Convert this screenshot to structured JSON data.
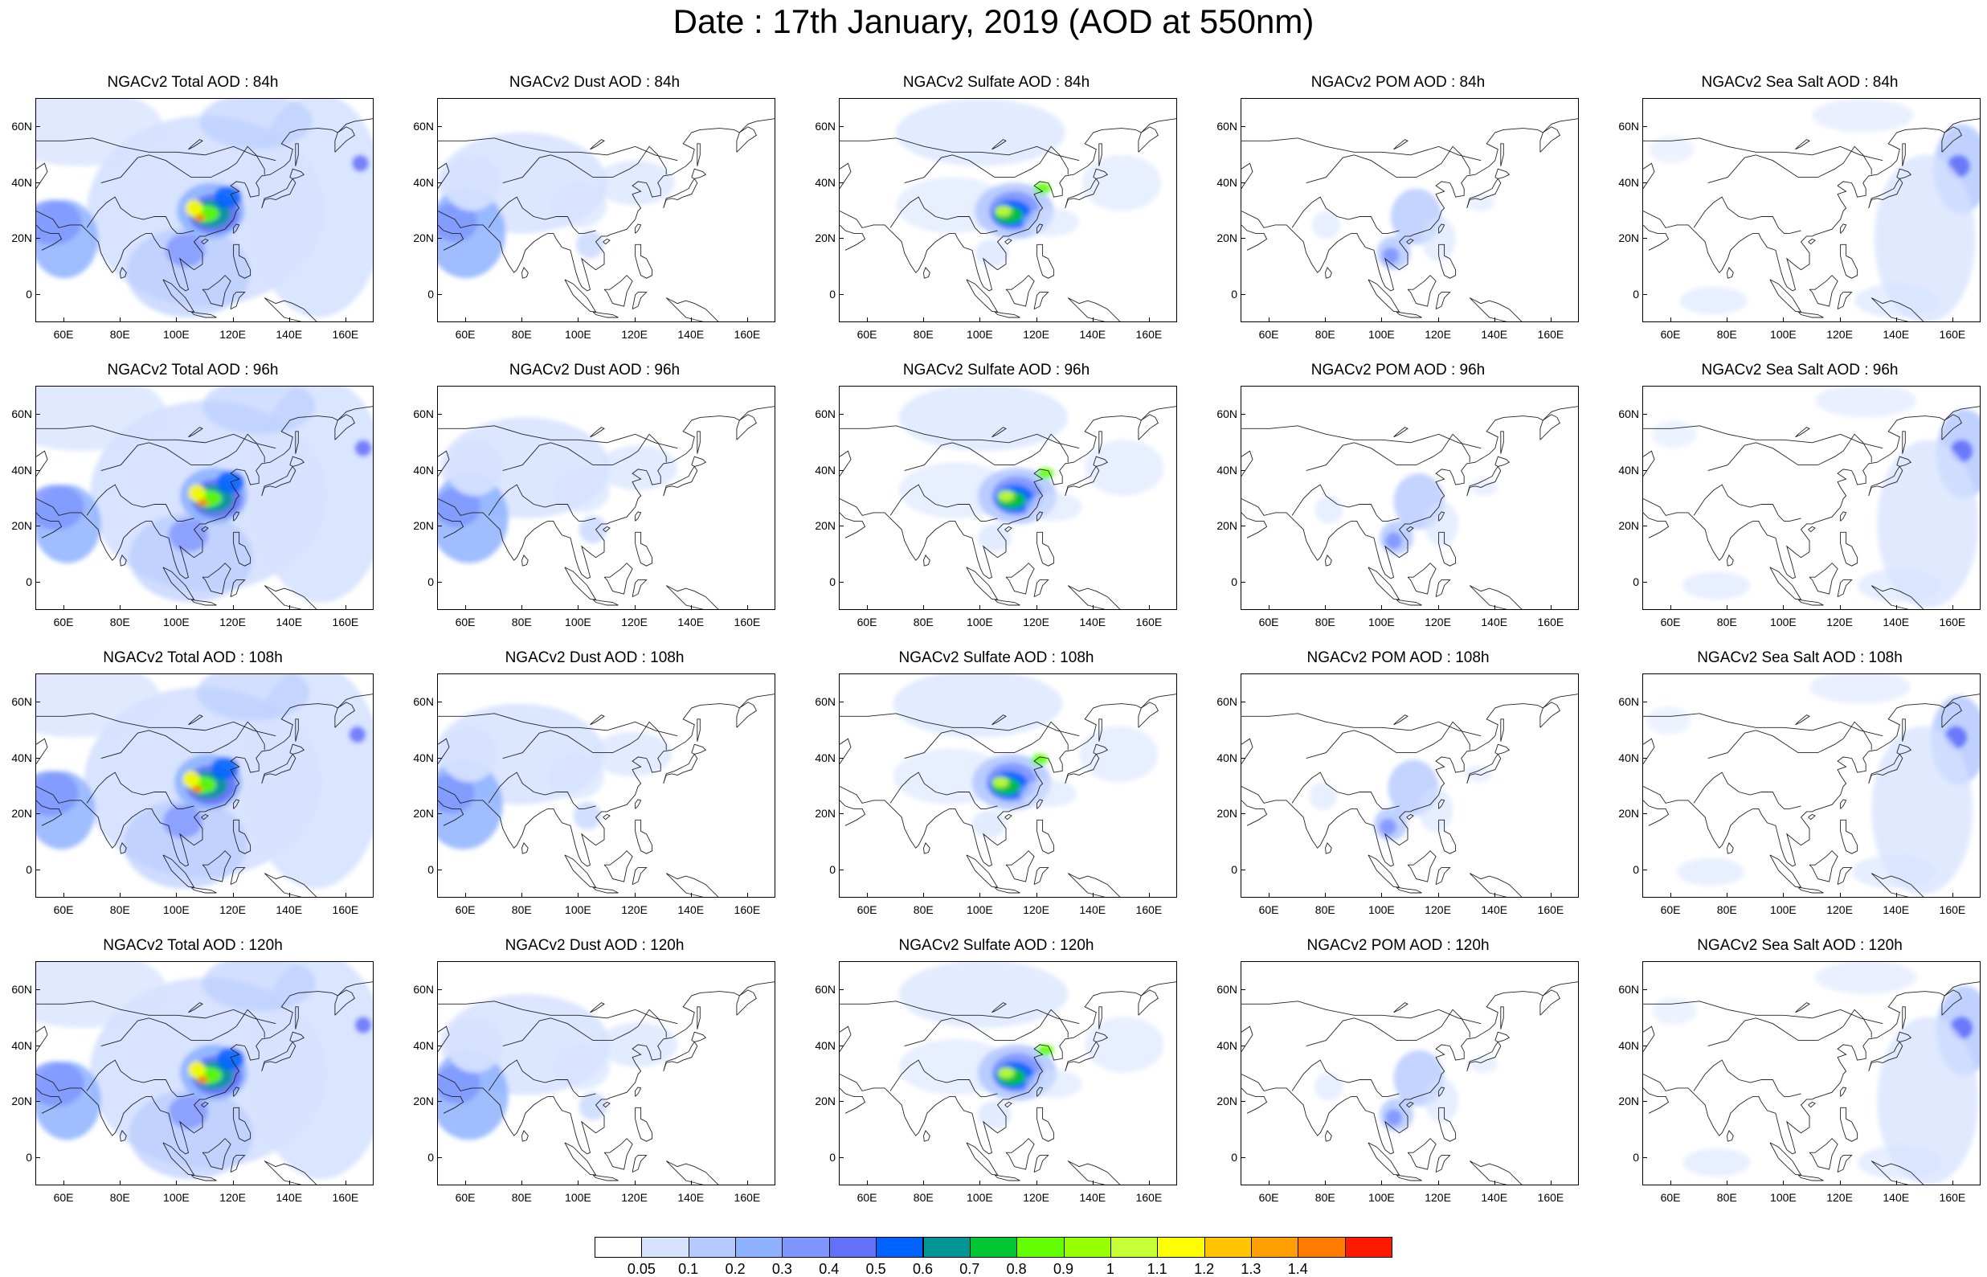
{
  "title": "Date : 17th January, 2019 (AOD at 550nm)",
  "panel_titles": [
    [
      "NGACv2 Total AOD : 84h",
      "NGACv2 Dust AOD : 84h",
      "NGACv2 Sulfate AOD : 84h",
      "NGACv2 POM AOD : 84h",
      "NGACv2 Sea Salt AOD : 84h"
    ],
    [
      "NGACv2 Total AOD : 96h",
      "NGACv2 Dust AOD : 96h",
      "NGACv2 Sulfate AOD : 96h",
      "NGACv2 POM AOD : 96h",
      "NGACv2 Sea Salt AOD : 96h"
    ],
    [
      "NGACv2 Total AOD : 108h",
      "NGACv2 Dust AOD : 108h",
      "NGACv2 Sulfate AOD : 108h",
      "NGACv2 POM AOD : 108h",
      "NGACv2 Sea Salt AOD : 108h"
    ],
    [
      "NGACv2 Total AOD : 120h",
      "NGACv2 Dust AOD : 120h",
      "NGACv2 Sulfate AOD : 120h",
      "NGACv2 POM AOD : 120h",
      "NGACv2 Sea Salt  AOD : 120h"
    ]
  ],
  "lat_labels": [
    "60N",
    "40N",
    "20N",
    "0"
  ],
  "lat_values": [
    60,
    40,
    20,
    0
  ],
  "lon_labels": [
    "60E",
    "80E",
    "100E",
    "120E",
    "140E",
    "160E"
  ],
  "lon_values": [
    60,
    80,
    100,
    120,
    140,
    160
  ],
  "map_extent": {
    "lon": [
      50,
      170
    ],
    "lat": [
      -10,
      70
    ]
  },
  "colorbar": {
    "labels": [
      "0.05",
      "0.1",
      "0.2",
      "0.3",
      "0.4",
      "0.5",
      "0.6",
      "0.7",
      "0.8",
      "0.9",
      "1",
      "1.1",
      "1.2",
      "1.3",
      "1.4"
    ],
    "colors": [
      "#ffffff",
      "#d6e2ff",
      "#b5c9ff",
      "#8eb2ff",
      "#7f96ff",
      "#6370f8",
      "#0063ff",
      "#009696",
      "#00c633",
      "#63ff00",
      "#96ff00",
      "#c6ff33",
      "#ffff00",
      "#ffc600",
      "#ffa000",
      "#ff7c00",
      "#ff1900"
    ]
  }
}
